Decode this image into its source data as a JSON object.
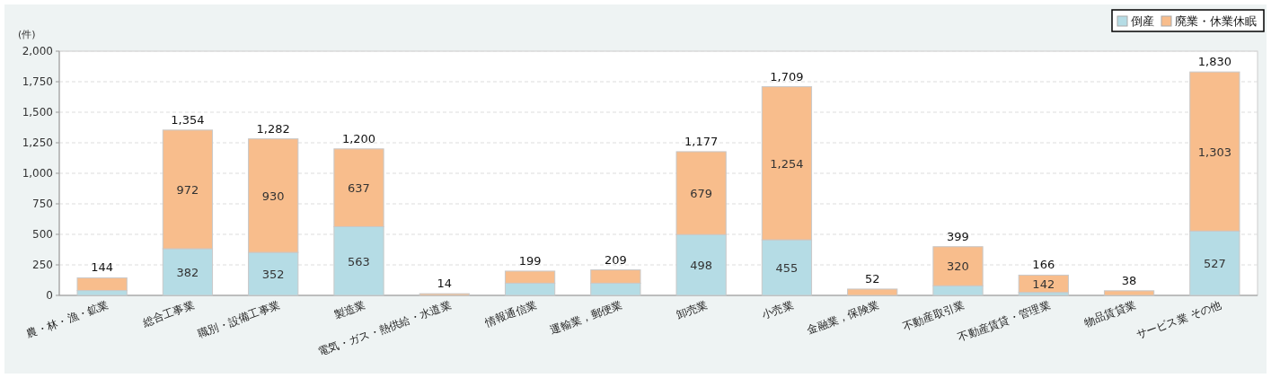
{
  "chart_data": {
    "type": "bar",
    "stacked": true,
    "ylabel": "(件)",
    "legend": "top right",
    "grid": "y",
    "categories": [
      "農・林・漁・鉱業",
      "総合工事業",
      "職別・設備工事業",
      "製造業",
      "電気・ガス・熱供給・水道業",
      "情報通信業",
      "運輸業，郵便業",
      "卸売業",
      "小売業",
      "金融業，保険業",
      "不動産取引業",
      "不動産賃貸・管理業",
      "物品賃貸業",
      "サービス業 その他"
    ],
    "series": [
      {
        "name": "倒産",
        "color": "#b5dce5",
        "values": [
          40,
          382,
          352,
          563,
          null,
          100,
          100,
          498,
          455,
          null,
          79,
          24,
          null,
          527
        ],
        "value_labels": [
          null,
          "382",
          "352",
          "563",
          null,
          null,
          null,
          "498",
          "455",
          null,
          null,
          null,
          null,
          "527"
        ]
      },
      {
        "name": "廃業・休業休眠",
        "color": "#f8bd8c",
        "values": [
          104,
          972,
          930,
          637,
          14,
          99,
          109,
          679,
          1254,
          52,
          320,
          142,
          38,
          1303
        ],
        "value_labels": [
          null,
          "972",
          "930",
          "637",
          null,
          null,
          null,
          "679",
          "1,254",
          null,
          "320",
          "142",
          null,
          "1,303"
        ]
      }
    ],
    "totals": [
      "144",
      "1,354",
      "1,282",
      "1,200",
      "14",
      "199",
      "209",
      "1,177",
      "1,709",
      "52",
      "399",
      "166",
      "38",
      "1,830"
    ],
    "ylim": [
      0,
      2000
    ],
    "yticks": [
      0,
      {
        "value": 250,
        "label": "250"
      },
      {
        "value": 500,
        "label": "500"
      },
      {
        "value": 750,
        "label": "750"
      },
      {
        "value": 1000,
        "label": "1,000"
      },
      {
        "value": 1250,
        "label": "1,250"
      },
      {
        "value": 1500,
        "label": "1,500"
      },
      {
        "value": 1750,
        "label": "1,750"
      },
      {
        "value": 2000,
        "label": "2,000"
      }
    ]
  }
}
